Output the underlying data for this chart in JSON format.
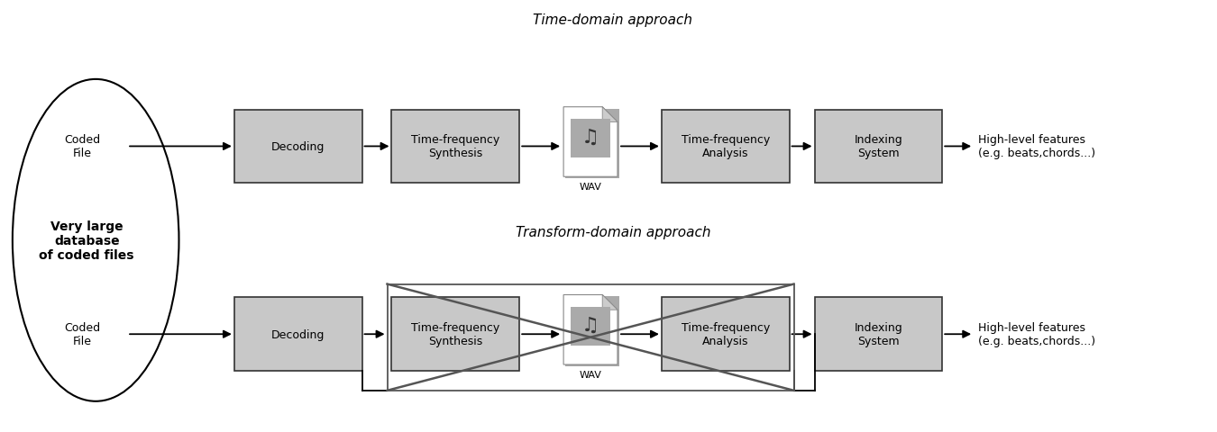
{
  "title_top": "Time-domain approach",
  "title_bottom": "Transform-domain approach",
  "ellipse_label": "Very large\ndatabase\nof coded files",
  "coded_file_label": "Coded\nFile",
  "row1_boxes": [
    "Decoding",
    "Time-frequency\nSynthesis",
    "Time-frequency\nAnalysis",
    "Indexing\nSystem"
  ],
  "row2_boxes": [
    "Decoding",
    "Time-frequency\nSynthesis",
    "Time-frequency\nAnalysis",
    "Indexing\nSystem"
  ],
  "wav_label": "WAV",
  "output_label": "High-level features\n(e.g. beats,chords...)",
  "box_facecolor": "#c8c8c8",
  "box_edgecolor": "#333333",
  "cross_color": "#555555",
  "arrow_color": "#000000",
  "bg_color": "#ffffff",
  "font_size_box": 9,
  "font_size_title": 11,
  "font_size_label": 9,
  "font_size_ellipse_label": 10
}
